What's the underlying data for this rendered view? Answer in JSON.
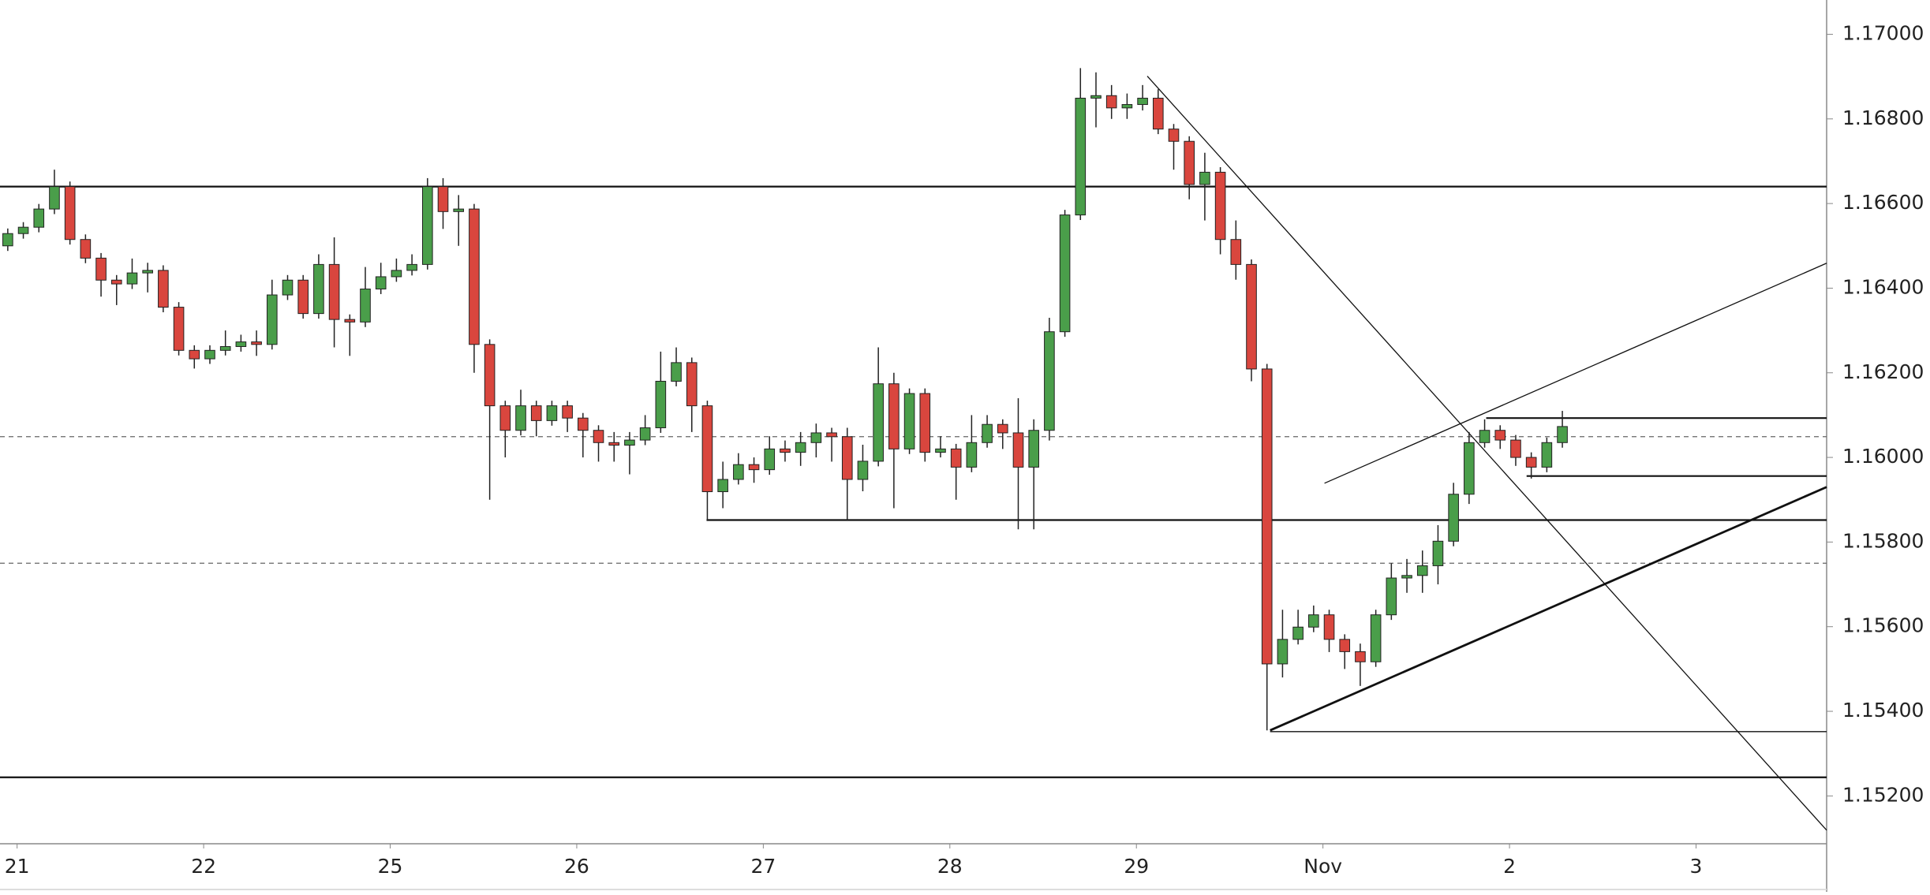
{
  "chart_data": {
    "type": "candlestick",
    "colors": {
      "up": "#4a9e4a",
      "down": "#d9463e",
      "outline": "#222"
    },
    "xlim": [
      -0.5,
      117
    ],
    "xticks": [
      {
        "value": 0.6,
        "label": "21"
      },
      {
        "value": 12.6,
        "label": "22"
      },
      {
        "value": 24.6,
        "label": "25"
      },
      {
        "value": 36.6,
        "label": "26"
      },
      {
        "value": 48.6,
        "label": "27"
      },
      {
        "value": 60.6,
        "label": "28"
      },
      {
        "value": 72.6,
        "label": "29"
      },
      {
        "value": 84.6,
        "label": "Nov"
      },
      {
        "value": 96.6,
        "label": "2"
      },
      {
        "value": 108.6,
        "label": "3"
      }
    ],
    "ylim": [
      1.15087,
      1.17081
    ],
    "yticks": [
      {
        "value": 1.152,
        "label": "1.15200"
      },
      {
        "value": 1.154,
        "label": "1.15400"
      },
      {
        "value": 1.156,
        "label": "1.15600"
      },
      {
        "value": 1.158,
        "label": "1.15800"
      },
      {
        "value": 1.16,
        "label": "1.16000"
      },
      {
        "value": 1.162,
        "label": "1.16200"
      },
      {
        "value": 1.164,
        "label": "1.16400"
      },
      {
        "value": 1.166,
        "label": "1.16600"
      },
      {
        "value": 1.168,
        "label": "1.16800"
      },
      {
        "value": 1.17,
        "label": "1.17000"
      }
    ],
    "candles": [
      [
        1.165,
        1.16541,
        1.16488,
        1.16529
      ],
      [
        1.16529,
        1.16556,
        1.16517,
        1.16544
      ],
      [
        1.16544,
        1.16599,
        1.16532,
        1.16587
      ],
      [
        1.16587,
        1.1668,
        1.16575,
        1.1664
      ],
      [
        1.1664,
        1.16652,
        1.16503,
        1.16515
      ],
      [
        1.16515,
        1.16527,
        1.16459,
        1.16471
      ],
      [
        1.16471,
        1.16483,
        1.1638,
        1.16419
      ],
      [
        1.16419,
        1.16431,
        1.1636,
        1.1641
      ],
      [
        1.1641,
        1.1647,
        1.16398,
        1.16436
      ],
      [
        1.16436,
        1.1646,
        1.1639,
        1.16442
      ],
      [
        1.16442,
        1.16454,
        1.16343,
        1.16355
      ],
      [
        1.16355,
        1.16367,
        1.16241,
        1.16253
      ],
      [
        1.16253,
        1.16265,
        1.1621,
        1.16233
      ],
      [
        1.16233,
        1.16265,
        1.16221,
        1.16253
      ],
      [
        1.16253,
        1.163,
        1.16241,
        1.16262
      ],
      [
        1.16262,
        1.1629,
        1.1625,
        1.16273
      ],
      [
        1.16273,
        1.163,
        1.1624,
        1.16267
      ],
      [
        1.16267,
        1.1642,
        1.16255,
        1.16384
      ],
      [
        1.16384,
        1.16431,
        1.16372,
        1.16419
      ],
      [
        1.16419,
        1.16431,
        1.16328,
        1.1634
      ],
      [
        1.1634,
        1.1648,
        1.16328,
        1.16456
      ],
      [
        1.16456,
        1.1652,
        1.1626,
        1.16326
      ],
      [
        1.16326,
        1.16338,
        1.1624,
        1.1632
      ],
      [
        1.1632,
        1.1645,
        1.16308,
        1.16398
      ],
      [
        1.16398,
        1.1646,
        1.16386,
        1.16427
      ],
      [
        1.16427,
        1.1647,
        1.16415,
        1.16442
      ],
      [
        1.16442,
        1.1648,
        1.1643,
        1.16456
      ],
      [
        1.16456,
        1.1666,
        1.16444,
        1.1664
      ],
      [
        1.1664,
        1.1666,
        1.1654,
        1.16581
      ],
      [
        1.16581,
        1.1662,
        1.165,
        1.16587
      ],
      [
        1.16587,
        1.16599,
        1.162,
        1.16267
      ],
      [
        1.16267,
        1.16279,
        1.159,
        1.16122
      ],
      [
        1.16122,
        1.16134,
        1.16,
        1.16064
      ],
      [
        1.16064,
        1.1616,
        1.16052,
        1.16122
      ],
      [
        1.16122,
        1.16134,
        1.1605,
        1.16087
      ],
      [
        1.16087,
        1.16134,
        1.16075,
        1.16122
      ],
      [
        1.16122,
        1.16134,
        1.1606,
        1.16093
      ],
      [
        1.16093,
        1.16105,
        1.16,
        1.16064
      ],
      [
        1.16064,
        1.16076,
        1.1599,
        1.16035
      ],
      [
        1.16035,
        1.1606,
        1.1599,
        1.16029
      ],
      [
        1.16029,
        1.1606,
        1.1596,
        1.16041
      ],
      [
        1.16041,
        1.161,
        1.16029,
        1.1607
      ],
      [
        1.1607,
        1.1625,
        1.16058,
        1.1618
      ],
      [
        1.1618,
        1.1626,
        1.16168,
        1.16224
      ],
      [
        1.16224,
        1.16236,
        1.1606,
        1.16122
      ],
      [
        1.16122,
        1.16134,
        1.1585,
        1.15919
      ],
      [
        1.15919,
        1.1599,
        1.1588,
        1.15948
      ],
      [
        1.15948,
        1.1601,
        1.15936,
        1.15983
      ],
      [
        1.15983,
        1.16,
        1.1594,
        1.15971
      ],
      [
        1.15971,
        1.1605,
        1.15959,
        1.1602
      ],
      [
        1.1602,
        1.1604,
        1.1599,
        1.16012
      ],
      [
        1.16012,
        1.1606,
        1.1598,
        1.16035
      ],
      [
        1.16035,
        1.1608,
        1.16,
        1.16058
      ],
      [
        1.16058,
        1.1607,
        1.1599,
        1.16049
      ],
      [
        1.16049,
        1.1607,
        1.1585,
        1.15948
      ],
      [
        1.15948,
        1.1603,
        1.1592,
        1.15991
      ],
      [
        1.15991,
        1.1626,
        1.15979,
        1.16174
      ],
      [
        1.16174,
        1.162,
        1.1588,
        1.1602
      ],
      [
        1.1602,
        1.16163,
        1.16008,
        1.16151
      ],
      [
        1.16151,
        1.16163,
        1.1599,
        1.16012
      ],
      [
        1.16012,
        1.1605,
        1.16,
        1.1602
      ],
      [
        1.1602,
        1.16032,
        1.159,
        1.15977
      ],
      [
        1.15977,
        1.161,
        1.15965,
        1.16035
      ],
      [
        1.16035,
        1.161,
        1.16023,
        1.16078
      ],
      [
        1.16078,
        1.1609,
        1.1602,
        1.16058
      ],
      [
        1.16058,
        1.1614,
        1.1583,
        1.15977
      ],
      [
        1.15977,
        1.1609,
        1.1583,
        1.16064
      ],
      [
        1.16064,
        1.1633,
        1.1604,
        1.16297
      ],
      [
        1.16297,
        1.16585,
        1.16285,
        1.16573
      ],
      [
        1.16573,
        1.1692,
        1.16561,
        1.16849
      ],
      [
        1.16849,
        1.1691,
        1.1678,
        1.16855
      ],
      [
        1.16855,
        1.1688,
        1.168,
        1.16826
      ],
      [
        1.16826,
        1.1686,
        1.168,
        1.16834
      ],
      [
        1.16834,
        1.1688,
        1.1682,
        1.16849
      ],
      [
        1.16849,
        1.1687,
        1.16764,
        1.16776
      ],
      [
        1.16776,
        1.16788,
        1.1668,
        1.16747
      ],
      [
        1.16747,
        1.16759,
        1.1661,
        1.16645
      ],
      [
        1.16645,
        1.1672,
        1.1656,
        1.16674
      ],
      [
        1.16674,
        1.16686,
        1.1648,
        1.16515
      ],
      [
        1.16515,
        1.1656,
        1.1642,
        1.16456
      ],
      [
        1.16456,
        1.16468,
        1.1618,
        1.16209
      ],
      [
        1.16209,
        1.16221,
        1.15355,
        1.15512
      ],
      [
        1.15512,
        1.1564,
        1.1548,
        1.1557
      ],
      [
        1.1557,
        1.1564,
        1.15558,
        1.15599
      ],
      [
        1.15599,
        1.1565,
        1.15587,
        1.15628
      ],
      [
        1.15628,
        1.1564,
        1.1554,
        1.1557
      ],
      [
        1.1557,
        1.15582,
        1.155,
        1.15541
      ],
      [
        1.15541,
        1.1556,
        1.1546,
        1.15517
      ],
      [
        1.15517,
        1.1564,
        1.15505,
        1.15628
      ],
      [
        1.15628,
        1.1575,
        1.15616,
        1.15715
      ],
      [
        1.15715,
        1.1576,
        1.1568,
        1.15721
      ],
      [
        1.15721,
        1.1578,
        1.1568,
        1.15744
      ],
      [
        1.15744,
        1.1584,
        1.157,
        1.15802
      ],
      [
        1.15802,
        1.1594,
        1.1579,
        1.15913
      ],
      [
        1.15913,
        1.1606,
        1.1589,
        1.16035
      ],
      [
        1.16035,
        1.1609,
        1.16023,
        1.16064
      ],
      [
        1.16064,
        1.16076,
        1.1602,
        1.16041
      ],
      [
        1.16041,
        1.16053,
        1.1598,
        1.16
      ],
      [
        1.16,
        1.16012,
        1.1595,
        1.15977
      ],
      [
        1.15977,
        1.16047,
        1.15965,
        1.16035
      ],
      [
        1.16035,
        1.1611,
        1.16023,
        1.16073
      ]
    ],
    "lines": [
      {
        "style": "solid",
        "y": [
          1.1664,
          1.1664
        ]
      },
      {
        "style": "dashed",
        "y": [
          1.16049,
          1.16049
        ]
      },
      {
        "style": "dashed",
        "y": [
          1.1575,
          1.1575
        ]
      },
      {
        "style": "solid",
        "y": [
          1.15244,
          1.15244
        ]
      },
      {
        "style": "solid",
        "x": [
          44.95,
          117
        ],
        "y": [
          1.15852,
          1.15852
        ]
      },
      {
        "style": "solid",
        "x": [
          95.1,
          117
        ],
        "y": [
          1.16093,
          1.16093
        ]
      },
      {
        "style": "solid",
        "x": [
          97.7,
          117
        ],
        "y": [
          1.15956,
          1.15956
        ]
      },
      {
        "style": "thin",
        "x": [
          81.2,
          117
        ],
        "y": [
          1.15352,
          1.15352
        ]
      },
      {
        "style": "thin",
        "x": [
          73.3,
          117
        ],
        "y": [
          1.16901,
          1.15119
        ]
      },
      {
        "style": "thin",
        "x": [
          84.7,
          117
        ],
        "y": [
          1.15939,
          1.16459
        ]
      },
      {
        "style": "thick",
        "x": [
          81.2,
          117
        ],
        "y": [
          1.15355,
          1.1593
        ]
      }
    ]
  }
}
